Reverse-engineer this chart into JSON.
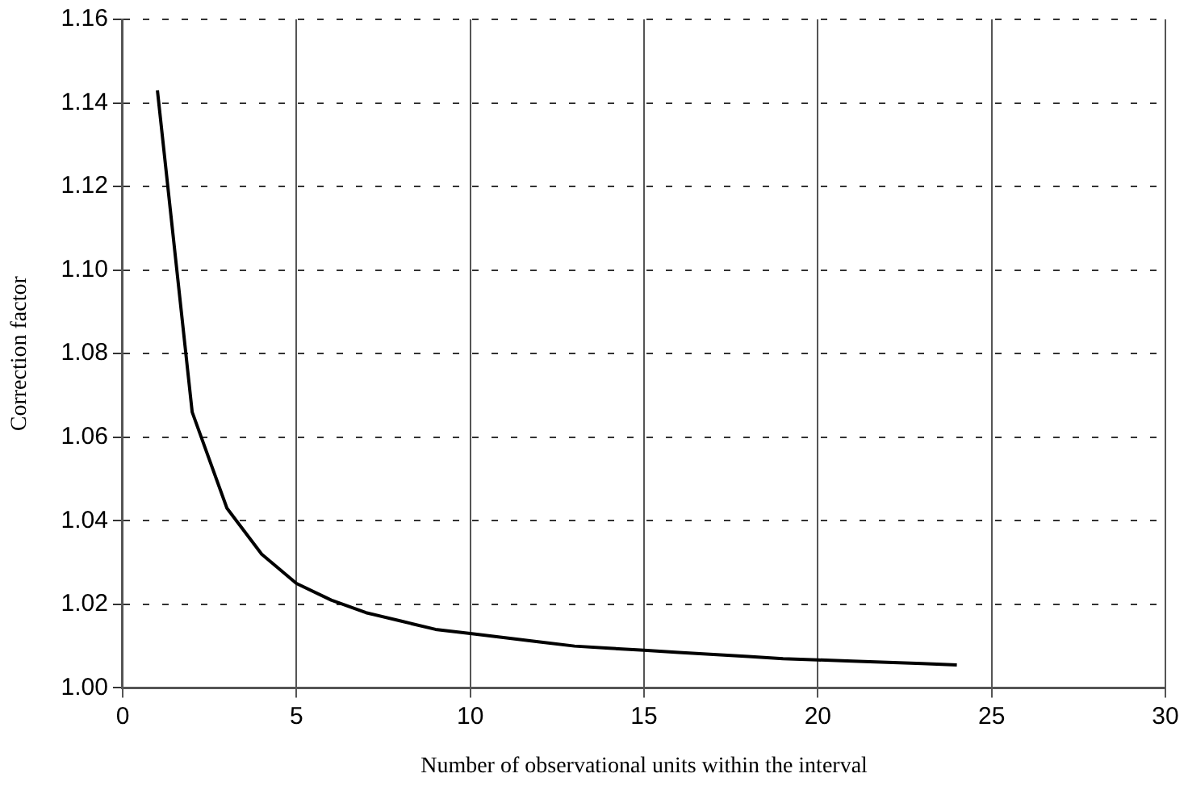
{
  "chart_data": {
    "type": "line",
    "xlabel": "Number of observational units within the interval",
    "ylabel": "Correction factor",
    "x": [
      1,
      2,
      3,
      4,
      5,
      6,
      7,
      8,
      9,
      10,
      11,
      12,
      13,
      14,
      15,
      16,
      17,
      18,
      19,
      20,
      21,
      22,
      23,
      24
    ],
    "series": [
      {
        "color": "#000000",
        "values": [
          1.143,
          1.066,
          1.043,
          1.032,
          1.025,
          1.021,
          1.018,
          1.016,
          1.014,
          1.013,
          1.012,
          1.011,
          1.01,
          1.0095,
          1.009,
          1.0085,
          1.008,
          1.0075,
          1.007,
          1.0067,
          1.0064,
          1.0061,
          1.0058,
          1.0055
        ]
      }
    ],
    "xlim": [
      0,
      30
    ],
    "xticks": [
      0,
      5,
      10,
      15,
      20,
      25,
      30
    ],
    "ylim": [
      1.0,
      1.16
    ],
    "yticks": [
      {
        "value": 1.0,
        "label": "1.00"
      },
      1.02,
      1.04,
      1.06,
      1.08,
      {
        "value": 1.1,
        "label": "1.10"
      },
      1.12,
      1.14,
      1.16
    ],
    "grid": true,
    "legend": false,
    "marker": "none",
    "line_style": "solid"
  }
}
